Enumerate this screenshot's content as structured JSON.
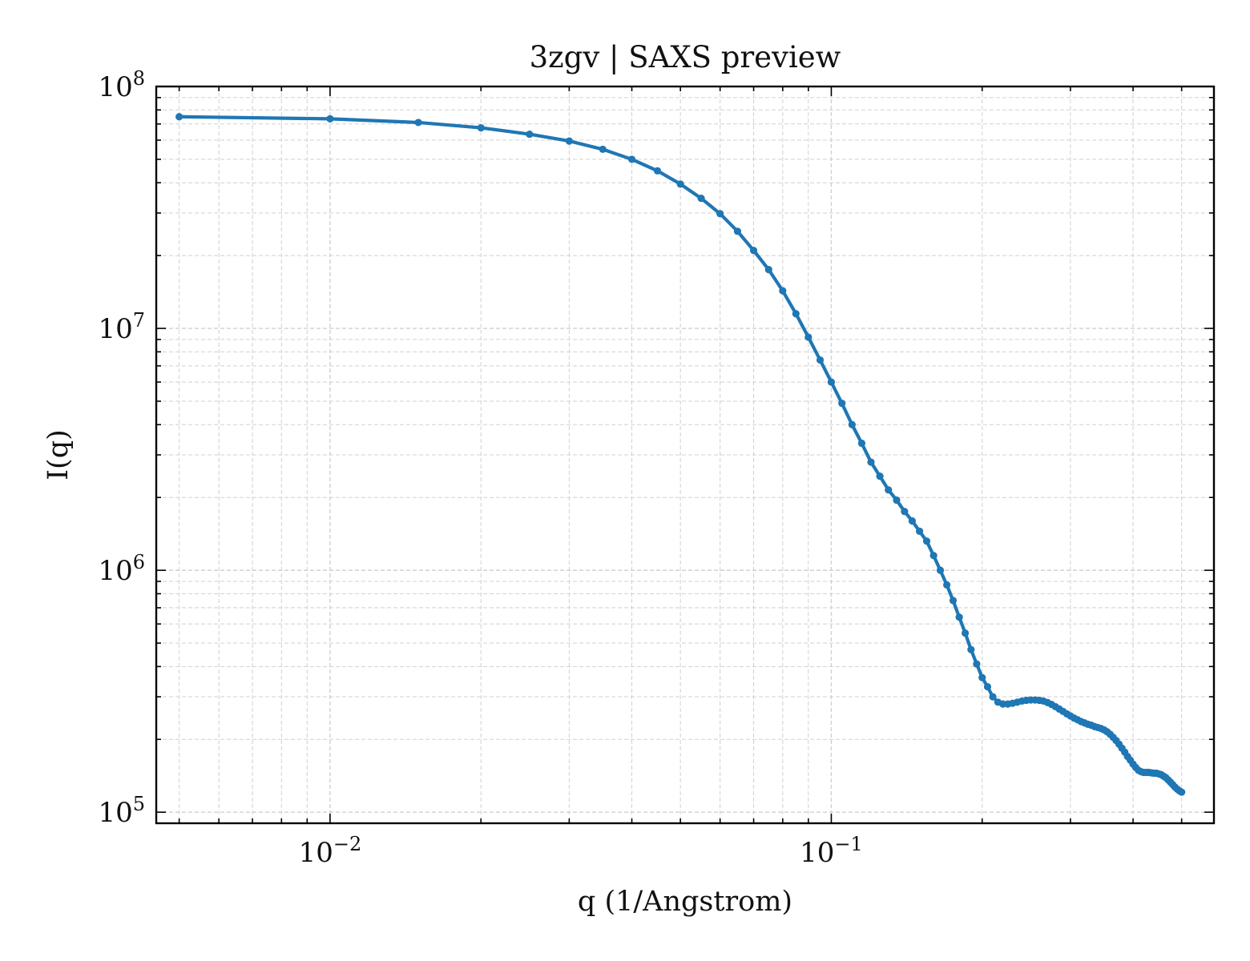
{
  "chart_data": {
    "type": "line",
    "title": "3zgv | SAXS preview",
    "xlabel": "q (1/Angstrom)",
    "ylabel": "I(q)",
    "xscale": "log",
    "yscale": "log",
    "xlim": [
      0.0045,
      0.58
    ],
    "ylim": [
      90000,
      100000000
    ],
    "grid": true,
    "grid_minor": true,
    "colors": {
      "series": "#1f77b4",
      "grid": "#d0d0d0",
      "axis": "#000000"
    },
    "x_ticks": [
      {
        "value": 0.01,
        "base": "10",
        "exp": "−2"
      },
      {
        "value": 0.1,
        "base": "10",
        "exp": "−1"
      }
    ],
    "y_ticks": [
      {
        "value": 100000,
        "base": "10",
        "exp": "5"
      },
      {
        "value": 1000000,
        "base": "10",
        "exp": "6"
      },
      {
        "value": 10000000,
        "base": "10",
        "exp": "7"
      },
      {
        "value": 100000000,
        "base": "10",
        "exp": "8"
      }
    ],
    "series": [
      {
        "x": [
          0.005,
          0.01,
          0.015,
          0.02,
          0.025,
          0.03,
          0.035,
          0.04,
          0.045,
          0.05,
          0.055,
          0.06,
          0.065,
          0.07,
          0.075,
          0.08,
          0.085,
          0.09,
          0.095,
          0.1,
          0.105,
          0.11,
          0.115,
          0.12,
          0.125,
          0.13,
          0.135,
          0.14,
          0.145,
          0.15,
          0.155,
          0.16,
          0.165,
          0.17,
          0.175,
          0.18,
          0.185,
          0.19,
          0.195,
          0.2,
          0.205,
          0.21,
          0.215,
          0.22,
          0.225,
          0.23,
          0.235,
          0.24,
          0.245,
          0.25,
          0.255,
          0.26,
          0.265,
          0.27,
          0.275,
          0.28,
          0.285,
          0.29,
          0.295,
          0.3,
          0.305,
          0.31,
          0.315,
          0.32,
          0.325,
          0.33,
          0.335,
          0.34,
          0.345,
          0.35,
          0.355,
          0.36,
          0.365,
          0.37,
          0.375,
          0.38,
          0.385,
          0.39,
          0.395,
          0.4,
          0.405,
          0.41,
          0.415,
          0.42,
          0.425,
          0.43,
          0.435,
          0.44,
          0.445,
          0.45,
          0.455,
          0.46,
          0.465,
          0.47,
          0.475,
          0.48,
          0.485,
          0.49,
          0.495,
          0.5
        ],
        "y": [
          75000000,
          73500000,
          71000000,
          67500000,
          63500000,
          59500000,
          55000000,
          50000000,
          44800000,
          39500000,
          34500000,
          29800000,
          25200000,
          21000000,
          17500000,
          14300000,
          11500000,
          9200000,
          7400000,
          6000000,
          4900000,
          4000000,
          3350000,
          2800000,
          2450000,
          2150000,
          1950000,
          1750000,
          1600000,
          1450000,
          1320000,
          1150000,
          1000000,
          870000,
          750000,
          640000,
          550000,
          470000,
          410000,
          360000,
          330000,
          300000,
          285000,
          280000,
          280000,
          282000,
          285000,
          288000,
          290000,
          291000,
          291000,
          290000,
          288000,
          284000,
          279000,
          273000,
          267000,
          261000,
          255000,
          250000,
          245000,
          241000,
          237000,
          234000,
          231000,
          229000,
          226000,
          224000,
          222000,
          219000,
          215000,
          210000,
          204000,
          198000,
          191000,
          184000,
          177000,
          170000,
          164000,
          158000,
          153000,
          149000,
          147000,
          146000,
          146000,
          146000,
          145500,
          145000,
          145000,
          144000,
          143000,
          141000,
          139000,
          136000,
          133000,
          130000,
          127000,
          124500,
          122500,
          121000
        ]
      }
    ]
  }
}
